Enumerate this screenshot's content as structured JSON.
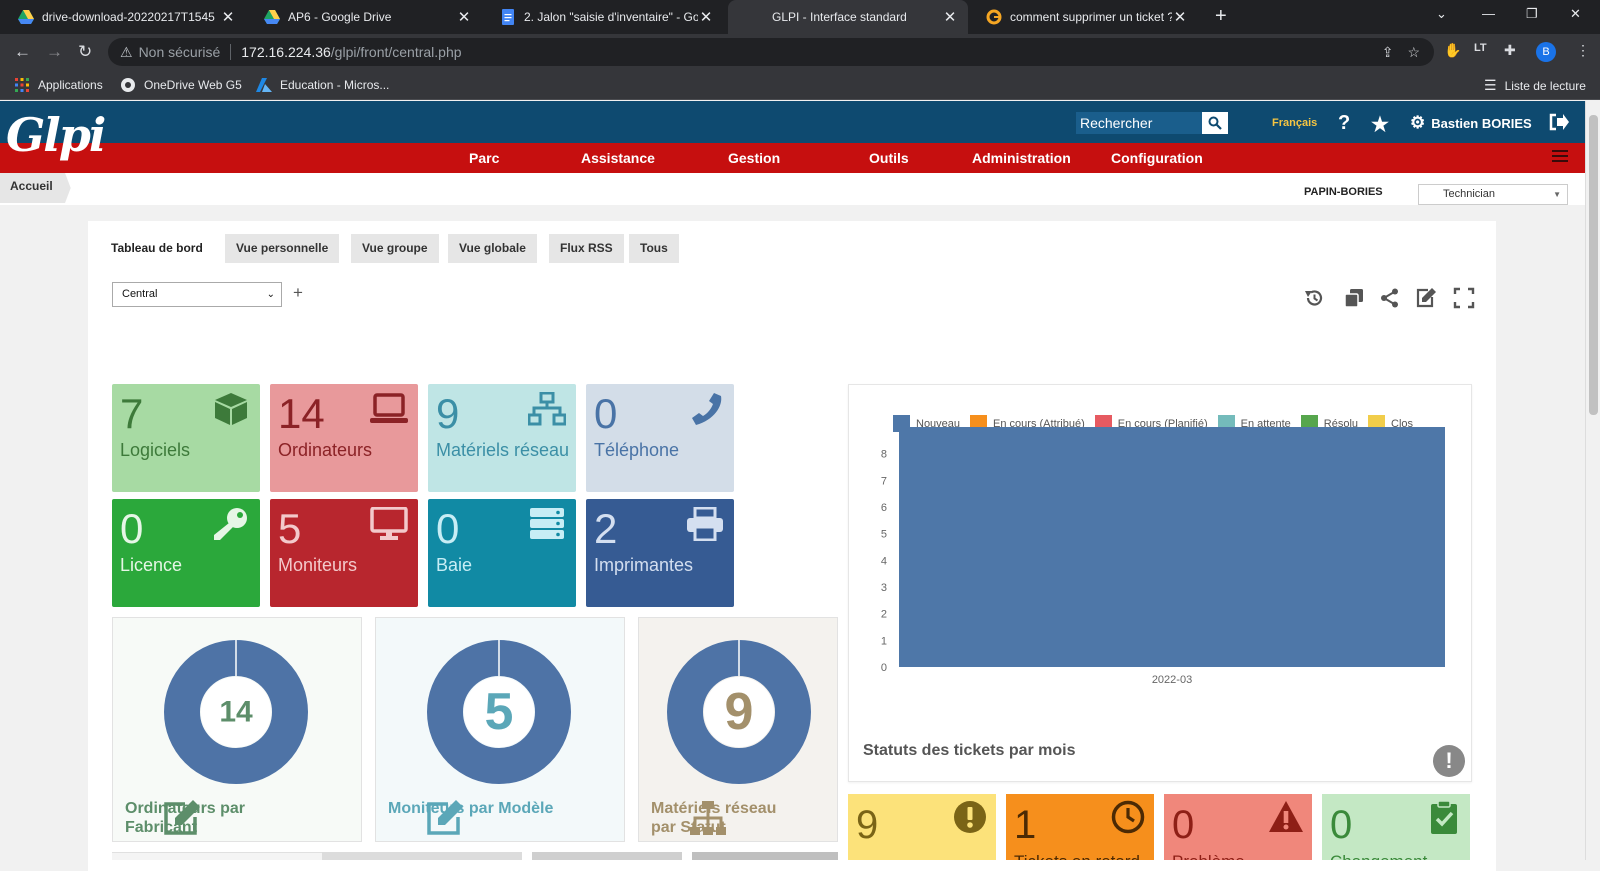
{
  "browser": {
    "tabs": [
      {
        "title": "drive-download-20220217T1545",
        "icon": "google-drive-icon"
      },
      {
        "title": "AP6 - Google Drive",
        "icon": "google-drive-icon"
      },
      {
        "title": "2. Jalon \"saisie d'inventaire\" - Go",
        "icon": "google-docs-icon"
      },
      {
        "title": "GLPI - Interface standard",
        "icon": "none"
      },
      {
        "title": "comment supprimer un ticket ? /",
        "icon": "glpi-icon"
      }
    ],
    "security_label": "Non sécurisé",
    "url_host": "172.16.224.36",
    "url_path": "/glpi/front/central.php",
    "bookmarks": [
      "Applications",
      "OneDrive Web G5",
      "Education - Micros..."
    ],
    "reading_list": "Liste de lecture",
    "profile_initial": "B"
  },
  "glpi": {
    "logo": "Glpi",
    "search_placeholder": "Rechercher",
    "language": "Français",
    "help": "?",
    "user": "Bastien BORIES",
    "menu": [
      "Parc",
      "Assistance",
      "Gestion",
      "Outils",
      "Administration",
      "Configuration"
    ],
    "breadcrumb": "Accueil",
    "entity": "PAPIN-BORIES",
    "profile": "Technician"
  },
  "dashboard": {
    "tabs": [
      "Tableau de bord",
      "Vue personnelle",
      "Vue groupe",
      "Vue globale",
      "Flux RSS",
      "Tous"
    ],
    "selected_dashboard": "Central",
    "add": "+",
    "cards": [
      {
        "value": "7",
        "label": "Logiciels",
        "icon": "cube-icon",
        "bg": "#a7daa3",
        "fg": "#3d7a3a"
      },
      {
        "value": "14",
        "label": "Ordinateurs",
        "icon": "laptop-icon",
        "bg": "#e8999b",
        "fg": "#8b2226"
      },
      {
        "value": "9",
        "label": "Matériels réseau",
        "icon": "network-icon",
        "bg": "#bfe5e5",
        "fg": "#3b8fa6"
      },
      {
        "value": "0",
        "label": "Téléphone",
        "icon": "phone-icon",
        "bg": "#d3dde8",
        "fg": "#4973a6"
      },
      {
        "value": "0",
        "label": "Licence",
        "icon": "key-icon",
        "bg": "#2ba83b",
        "fg": "#e6f6e6"
      },
      {
        "value": "5",
        "label": "Moniteurs",
        "icon": "monitor-icon",
        "bg": "#b8262e",
        "fg": "#f3c9cb"
      },
      {
        "value": "0",
        "label": "Baie",
        "icon": "server-icon",
        "bg": "#118aa4",
        "fg": "#c7edf5"
      },
      {
        "value": "2",
        "label": "Imprimantes",
        "icon": "printer-icon",
        "bg": "#365b93",
        "fg": "#d4dff0"
      }
    ],
    "donuts": [
      {
        "value": "14",
        "title": "Ordinateurs par Fabricant",
        "icon": "edit-icon",
        "bg": "#f7faf7",
        "title_color": "#5d8e6a",
        "value_color": "#5d8e6a",
        "icon_color": "#5d8e6a"
      },
      {
        "value": "5",
        "title": "Moniteurs par Modèle",
        "icon": "edit-icon",
        "bg": "#f3f9fa",
        "title_color": "#5ba7b8",
        "value_color": "#5ba7b8",
        "icon_color": "#5ba7b8"
      },
      {
        "value": "9",
        "title": "Matériels réseau par Statut",
        "icon": "sitemap-icon",
        "bg": "#f4f2ee",
        "title_color": "#a3906b",
        "value_color": "#a3906b",
        "icon_color": "#a3906b"
      }
    ],
    "ticket_cards": [
      {
        "value": "9",
        "label": "",
        "icon": "exclamation-circle-icon",
        "bg": "#fce27a",
        "fg": "#7a6416"
      },
      {
        "value": "1",
        "label": "Tickets en retard",
        "icon": "clock-icon",
        "bg": "#f68f1c",
        "fg": "#4c2a04"
      },
      {
        "value": "0",
        "label": "Problème",
        "icon": "warning-icon",
        "bg": "#f0877b",
        "fg": "#8e1f16"
      },
      {
        "value": "0",
        "label": "Changement",
        "icon": "clipboard-check-icon",
        "bg": "#c4e8c4",
        "fg": "#3a8a3a"
      }
    ],
    "colors": {
      "donut": "#4e73a6",
      "bar": "#4e77a8"
    }
  },
  "chart_data": {
    "type": "bar",
    "title": "Statuts des tickets par mois",
    "categories": [
      "2022-03"
    ],
    "series": [
      {
        "name": "Nouveau",
        "color": "#4e77a8",
        "values": [
          9
        ]
      },
      {
        "name": "En cours (Attribué)",
        "color": "#f68f1c",
        "values": [
          0
        ]
      },
      {
        "name": "En cours (Planifié)",
        "color": "#e65a61",
        "values": [
          0
        ]
      },
      {
        "name": "En attente",
        "color": "#74bbbb",
        "values": [
          0
        ]
      },
      {
        "name": "Résolu",
        "color": "#56a64d",
        "values": [
          0
        ]
      },
      {
        "name": "Clos",
        "color": "#f1cd4a",
        "values": [
          0
        ]
      }
    ],
    "y_ticks": [
      "0",
      "1",
      "2",
      "3",
      "4",
      "5",
      "6",
      "7",
      "8"
    ],
    "ylim": [
      0,
      9
    ],
    "legend": "top",
    "grid": false
  }
}
